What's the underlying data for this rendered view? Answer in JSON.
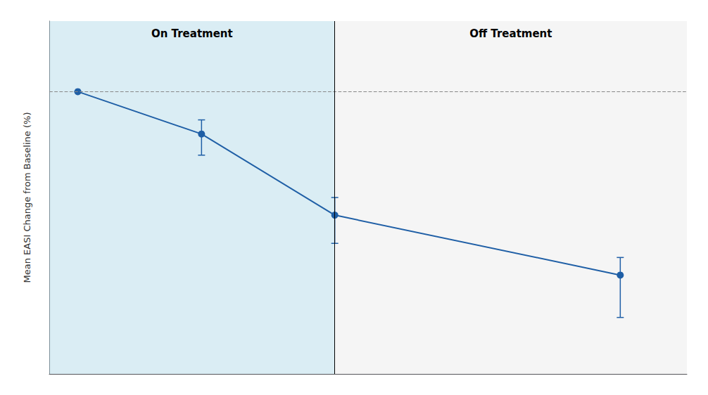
{
  "chart_data": {
    "type": "line",
    "ylabel": "Mean EASI Change from Baseline (%)",
    "x": [
      1,
      14,
      28,
      58
    ],
    "values": [
      0,
      -12,
      -35,
      -52
    ],
    "error_low": [
      0,
      6,
      8,
      12
    ],
    "error_high": [
      0,
      4,
      5,
      5
    ],
    "color": "#1f5fa6",
    "marker": "circle",
    "xlim": [
      -2,
      65
    ],
    "ylim": [
      -80,
      20
    ],
    "tick_labels": false,
    "grid": false,
    "annotations": [
      {
        "text": "On Treatment",
        "x_start": -2,
        "x_end": 28,
        "color": "#add8e6"
      },
      {
        "text": "Off Treatment",
        "x_start": 28,
        "x_end": 65,
        "color": "#e8e8e8"
      }
    ],
    "reference_lines": [
      {
        "axis": "y",
        "value": 0,
        "line_style": "dashed",
        "color": "#888888"
      },
      {
        "axis": "x",
        "value": 28,
        "line_style": "solid",
        "color": "#000000"
      }
    ]
  }
}
